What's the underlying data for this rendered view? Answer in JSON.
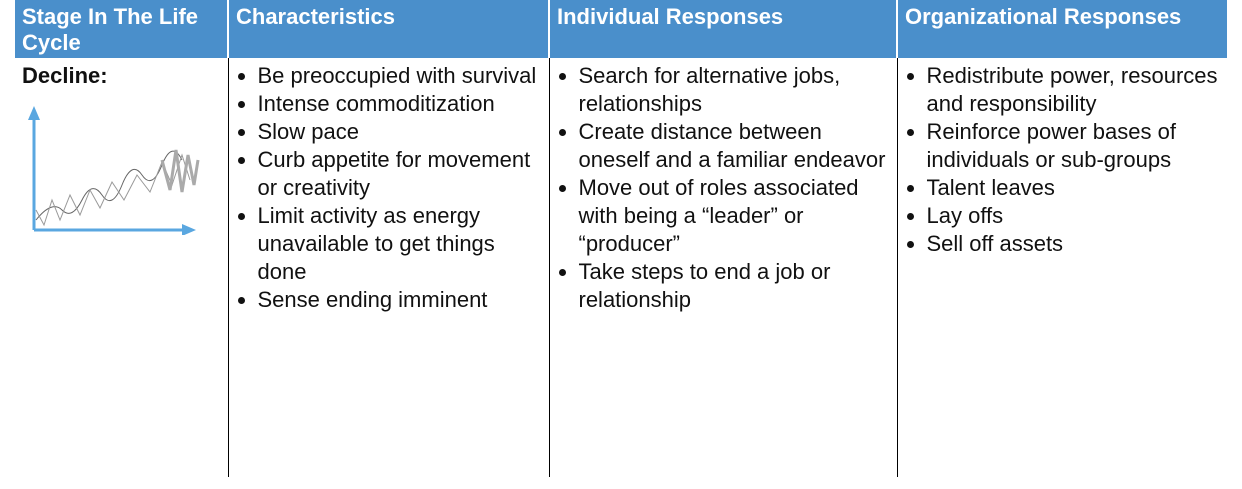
{
  "table": {
    "headers": [
      "Stage In The Life Cycle",
      "Characteristics",
      "Individual Responses",
      "Organizational Responses"
    ],
    "stage": "Decline:",
    "columns": [
      [
        "Be preoccupied with survival",
        "Intense commoditization",
        "Slow pace",
        "Curb appetite for movement or creativity",
        "Limit activity as energy unavailable to get things done",
        "Sense ending imminent"
      ],
      [
        "Search for alternative jobs, relationships",
        "Create distance between oneself and a familiar endeavor",
        "Move out of roles associated with being a “leader” or “producer”",
        "Take steps to end a job or relationship"
      ],
      [
        "Redistribute power, resources and responsibility",
        "Reinforce power bases of individuals or sub-groups",
        "Talent leaves",
        "Lay offs",
        "Sell off assets"
      ]
    ]
  }
}
